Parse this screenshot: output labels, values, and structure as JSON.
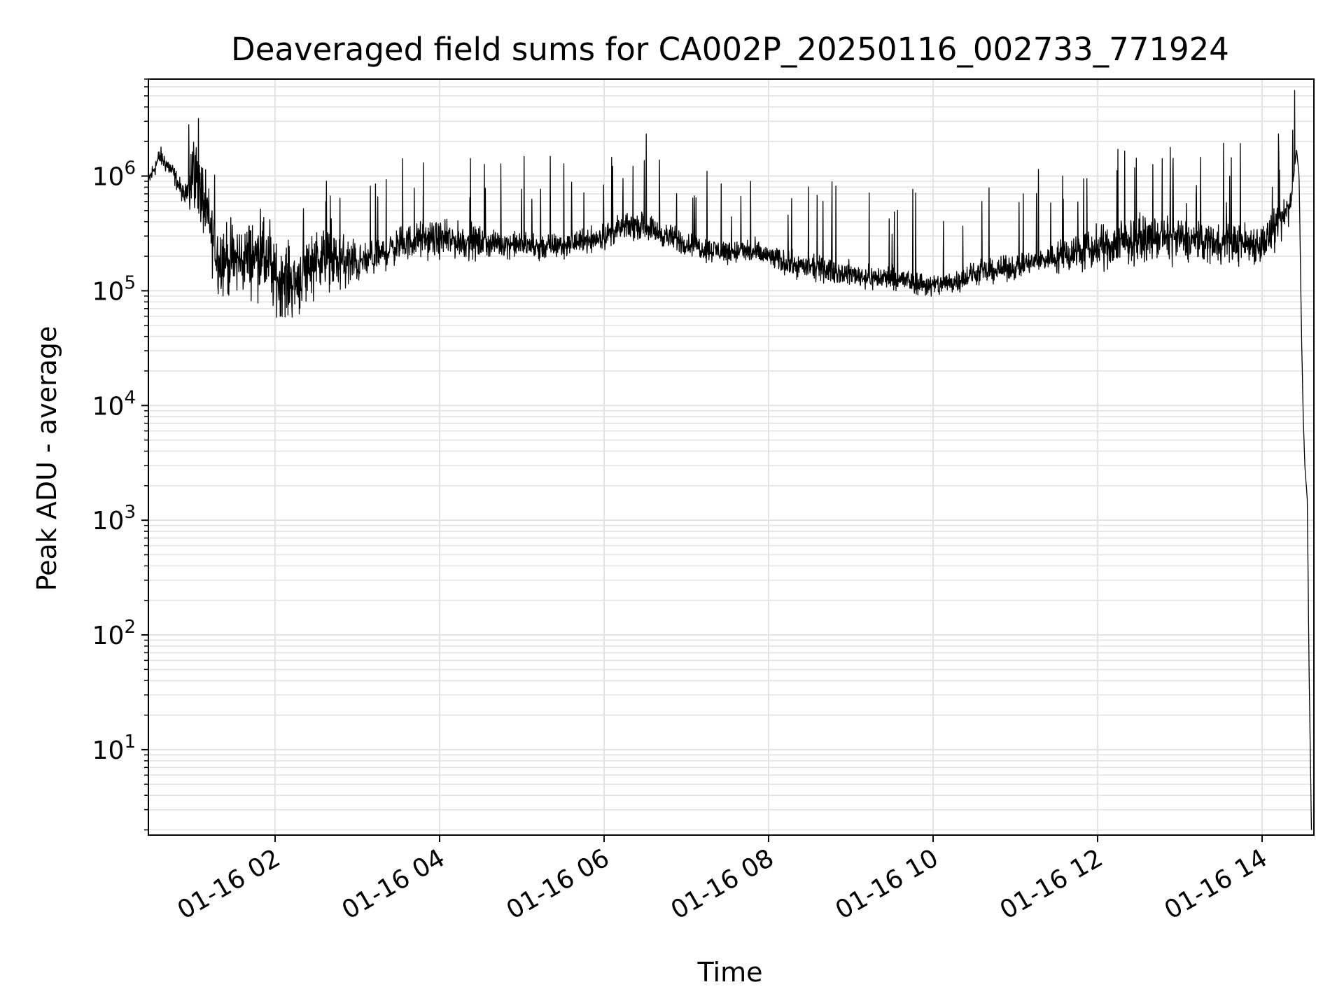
{
  "chart_data": {
    "type": "line",
    "title": "Deaveraged field sums for CA002P_20250116_002733_771924",
    "xlabel": "Time",
    "ylabel": "Peak ADU - average",
    "x_axis": {
      "kind": "time",
      "range_hours": [
        0.46,
        14.63
      ],
      "ticks": [
        {
          "hour": 2,
          "label": "01-16 02"
        },
        {
          "hour": 4,
          "label": "01-16 04"
        },
        {
          "hour": 6,
          "label": "01-16 06"
        },
        {
          "hour": 8,
          "label": "01-16 08"
        },
        {
          "hour": 10,
          "label": "01-16 10"
        },
        {
          "hour": 12,
          "label": "01-16 12"
        },
        {
          "hour": 14,
          "label": "01-16 14"
        }
      ],
      "tick_label_rotation": 30
    },
    "y_axis": {
      "scale": "log",
      "ylim": [
        1.8,
        7000000
      ],
      "ticks": [
        {
          "value": 10,
          "base": "10",
          "exp": "1"
        },
        {
          "value": 100,
          "base": "10",
          "exp": "2"
        },
        {
          "value": 1000,
          "base": "10",
          "exp": "3"
        },
        {
          "value": 10000,
          "base": "10",
          "exp": "4"
        },
        {
          "value": 100000,
          "base": "10",
          "exp": "5"
        },
        {
          "value": 1000000,
          "base": "10",
          "exp": "6"
        }
      ]
    },
    "grid": true,
    "legend": "none",
    "series": [
      {
        "color": "#000000",
        "x_hours": [
          0.46,
          0.6,
          0.75,
          0.9,
          1.0,
          1.1,
          1.3,
          1.5,
          1.7,
          1.85,
          2.0,
          2.25,
          2.5,
          2.75,
          3.0,
          3.25,
          3.5,
          3.75,
          4.0,
          4.25,
          4.5,
          4.75,
          5.0,
          5.25,
          5.5,
          5.75,
          6.0,
          6.25,
          6.5,
          6.75,
          7.0,
          7.25,
          7.5,
          7.75,
          8.0,
          8.25,
          8.5,
          8.75,
          9.0,
          9.25,
          9.5,
          9.75,
          10.0,
          10.25,
          10.5,
          10.75,
          11.0,
          11.25,
          11.5,
          11.75,
          12.0,
          12.25,
          12.5,
          12.75,
          13.0,
          13.25,
          13.5,
          13.75,
          14.0,
          14.2,
          14.35,
          14.42,
          14.45,
          14.48,
          14.5,
          14.52,
          14.55,
          14.57,
          14.6
        ],
        "y": [
          900000,
          1500000,
          1100000,
          650000,
          1200000,
          700000,
          200000,
          180000,
          200000,
          200000,
          130000,
          120000,
          200000,
          180000,
          170000,
          200000,
          250000,
          280000,
          280000,
          270000,
          260000,
          260000,
          250000,
          240000,
          250000,
          270000,
          300000,
          360000,
          370000,
          300000,
          260000,
          230000,
          220000,
          220000,
          200000,
          170000,
          160000,
          150000,
          140000,
          130000,
          130000,
          120000,
          110000,
          120000,
          140000,
          150000,
          160000,
          180000,
          200000,
          220000,
          230000,
          260000,
          280000,
          290000,
          280000,
          270000,
          270000,
          260000,
          260000,
          350000,
          600000,
          1700000,
          1000000,
          40000,
          8000,
          3000,
          1500,
          60,
          2
        ]
      }
    ]
  }
}
